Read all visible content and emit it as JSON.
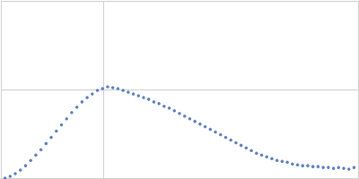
{
  "chart_data": {
    "type": "scatter",
    "color": "#3a64b0",
    "marker": "circle",
    "grid": true,
    "tick_labels": false,
    "xlim": [
      0,
      3.48
    ],
    "xticks": [
      0,
      1,
      3.48
    ],
    "ylim": [
      0,
      2
    ],
    "yticks": [
      0,
      1,
      2
    ],
    "x": [
      0.04,
      0.09,
      0.14,
      0.19,
      0.24,
      0.29,
      0.34,
      0.39,
      0.44,
      0.49,
      0.54,
      0.59,
      0.64,
      0.69,
      0.74,
      0.79,
      0.84,
      0.89,
      0.94,
      0.99,
      1.04,
      1.09,
      1.14,
      1.19,
      1.24,
      1.29,
      1.34,
      1.39,
      1.44,
      1.49,
      1.54,
      1.59,
      1.64,
      1.69,
      1.74,
      1.79,
      1.84,
      1.89,
      1.94,
      1.99,
      2.04,
      2.09,
      2.14,
      2.19,
      2.24,
      2.29,
      2.34,
      2.39,
      2.44,
      2.49,
      2.54,
      2.59,
      2.64,
      2.69,
      2.74,
      2.79,
      2.84,
      2.89,
      2.94,
      2.99,
      3.04,
      3.09,
      3.14,
      3.19,
      3.24,
      3.29,
      3.34,
      3.39,
      3.44
    ],
    "values": [
      0.0,
      0.02,
      0.05,
      0.09,
      0.14,
      0.2,
      0.26,
      0.32,
      0.39,
      0.46,
      0.53,
      0.6,
      0.67,
      0.74,
      0.8,
      0.86,
      0.91,
      0.95,
      0.99,
      1.01,
      1.03,
      1.02,
      1.01,
      0.99,
      0.97,
      0.95,
      0.93,
      0.91,
      0.89,
      0.86,
      0.84,
      0.81,
      0.79,
      0.76,
      0.73,
      0.7,
      0.67,
      0.64,
      0.61,
      0.58,
      0.55,
      0.52,
      0.49,
      0.46,
      0.43,
      0.4,
      0.37,
      0.34,
      0.31,
      0.28,
      0.26,
      0.24,
      0.22,
      0.2,
      0.19,
      0.18,
      0.16,
      0.15,
      0.14,
      0.14,
      0.13,
      0.13,
      0.12,
      0.12,
      0.11,
      0.12,
      0.11,
      0.1,
      0.12
    ]
  }
}
